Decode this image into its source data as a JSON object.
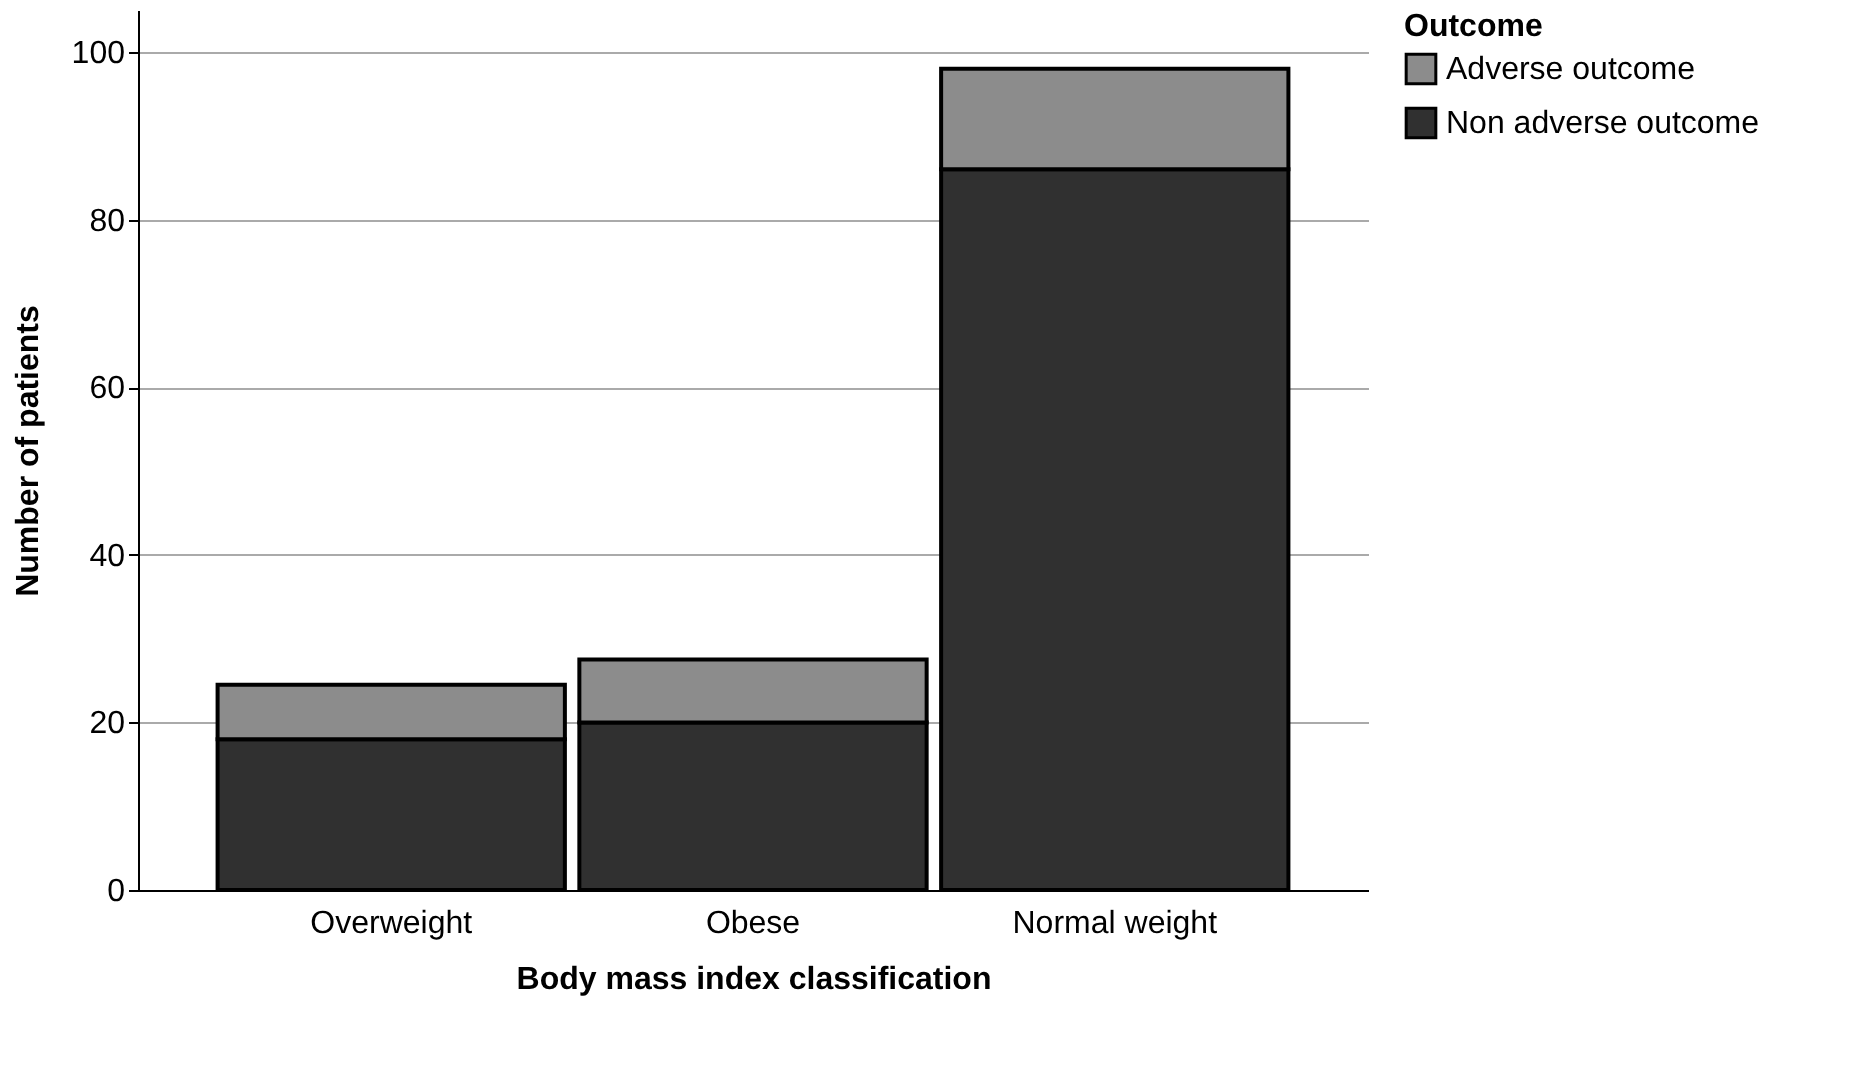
{
  "chart_data": {
    "type": "bar",
    "xlabel": "Body mass index classification",
    "ylabel": "Number of patients",
    "legend_title": "Outcome",
    "categories": [
      "Overweight",
      "Obese",
      "Normal weight"
    ],
    "stacked": true,
    "series": [
      {
        "name": "Non adverse outcome",
        "color": "#303030",
        "values": [
          18,
          20,
          86
        ]
      },
      {
        "name": "Adverse outcome",
        "color": "#8c8c8c",
        "values": [
          6.5,
          7.5,
          12
        ]
      }
    ],
    "ylim": [
      0,
      105
    ],
    "yticks": [
      0,
      20,
      40,
      60,
      80,
      100
    ],
    "grid": "y",
    "legend": "top right"
  }
}
